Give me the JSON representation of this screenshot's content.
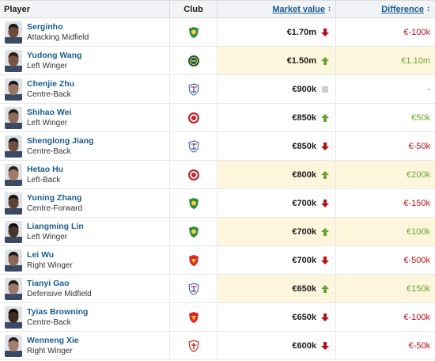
{
  "header": {
    "player": "Player",
    "club": "Club",
    "market_value": "Market value",
    "market_value_arrow": "↕",
    "difference": "Difference",
    "difference_arrow": "↕"
  },
  "colors": {
    "link": "#1a5c8e",
    "up": "#6aa431",
    "down": "#b5121b",
    "highlight": "#fdf6dc"
  },
  "rows": [
    {
      "name": "Serginho",
      "position": "Attacking Midfield",
      "club_icon": "green-shield-crest",
      "market_value": "€1.70m",
      "trend": "down",
      "difference": "€-100k",
      "highlight": false
    },
    {
      "name": "Yudong Wang",
      "position": "Left Winger",
      "club_icon": "green-round-crest",
      "market_value": "€1.50m",
      "trend": "up",
      "difference": "€1.10m",
      "highlight": true
    },
    {
      "name": "Chenjie Zhu",
      "position": "Centre-Back",
      "club_icon": "blue-anchor-crest",
      "market_value": "€900k",
      "trend": "same",
      "difference": "-",
      "highlight": false
    },
    {
      "name": "Shihao Wei",
      "position": "Left Winger",
      "club_icon": "red-round-crest",
      "market_value": "€850k",
      "trend": "up",
      "difference": "€50k",
      "highlight": false
    },
    {
      "name": "Shenglong Jiang",
      "position": "Centre-Back",
      "club_icon": "blue-anchor-crest",
      "market_value": "€850k",
      "trend": "down",
      "difference": "€-50k",
      "highlight": false
    },
    {
      "name": "Hetao Hu",
      "position": "Left-Back",
      "club_icon": "red-round-crest",
      "market_value": "€800k",
      "trend": "up",
      "difference": "€200k",
      "highlight": true
    },
    {
      "name": "Yuning Zhang",
      "position": "Centre-Forward",
      "club_icon": "green-shield-crest",
      "market_value": "€700k",
      "trend": "down",
      "difference": "€-150k",
      "highlight": false
    },
    {
      "name": "Liangming Lin",
      "position": "Left Winger",
      "club_icon": "green-shield-crest",
      "market_value": "€700k",
      "trend": "up",
      "difference": "€100k",
      "highlight": true
    },
    {
      "name": "Lei Wu",
      "position": "Right Winger",
      "club_icon": "red-shield-crest",
      "market_value": "€700k",
      "trend": "down",
      "difference": "€-500k",
      "highlight": false
    },
    {
      "name": "Tianyi Gao",
      "position": "Defensive Midfield",
      "club_icon": "blue-anchor-crest",
      "market_value": "€650k",
      "trend": "up",
      "difference": "€150k",
      "highlight": true
    },
    {
      "name": "Tyias Browning",
      "position": "Centre-Back",
      "club_icon": "red-shield-crest",
      "market_value": "€650k",
      "trend": "down",
      "difference": "€-100k",
      "highlight": false
    },
    {
      "name": "Wenneng Xie",
      "position": "Right Winger",
      "club_icon": "red-white-crest",
      "market_value": "€600k",
      "trend": "down",
      "difference": "€-50k",
      "highlight": false
    }
  ]
}
